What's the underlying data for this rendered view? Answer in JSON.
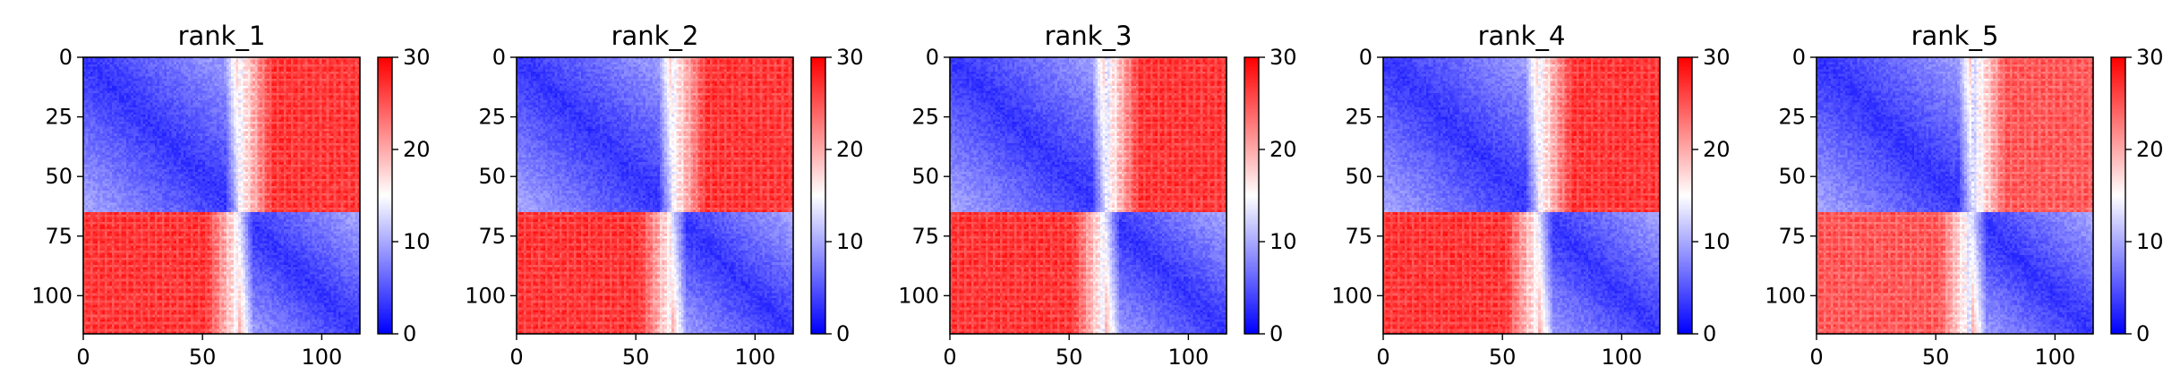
{
  "chart_data": [
    {
      "type": "heatmap",
      "title": "rank_1",
      "n": 116,
      "xlim": [
        0,
        116
      ],
      "ylim": [
        116,
        0
      ],
      "x_ticks": [
        "0",
        "50",
        "100"
      ],
      "y_ticks": [
        "0",
        "25",
        "50",
        "75",
        "100"
      ],
      "colorbar": {
        "cmap": "bwr",
        "min": 0,
        "max": 30,
        "ticks": [
          "0",
          "10",
          "20",
          "30"
        ]
      },
      "block_boundary": 65,
      "within_block_value": 3,
      "between_block_value": 27,
      "boundary_band_value": 15
    },
    {
      "type": "heatmap",
      "title": "rank_2",
      "n": 116,
      "xlim": [
        0,
        116
      ],
      "ylim": [
        116,
        0
      ],
      "x_ticks": [
        "0",
        "50",
        "100"
      ],
      "y_ticks": [
        "0",
        "25",
        "50",
        "75",
        "100"
      ],
      "colorbar": {
        "cmap": "bwr",
        "min": 0,
        "max": 30,
        "ticks": [
          "0",
          "10",
          "20",
          "30"
        ]
      },
      "block_boundary": 65,
      "within_block_value": 3,
      "between_block_value": 27,
      "boundary_band_value": 15
    },
    {
      "type": "heatmap",
      "title": "rank_3",
      "n": 116,
      "xlim": [
        0,
        116
      ],
      "ylim": [
        116,
        0
      ],
      "x_ticks": [
        "0",
        "50",
        "100"
      ],
      "y_ticks": [
        "0",
        "25",
        "50",
        "75",
        "100"
      ],
      "colorbar": {
        "cmap": "bwr",
        "min": 0,
        "max": 30,
        "ticks": [
          "0",
          "10",
          "20",
          "30"
        ]
      },
      "block_boundary": 65,
      "within_block_value": 3,
      "between_block_value": 27,
      "boundary_band_value": 14
    },
    {
      "type": "heatmap",
      "title": "rank_4",
      "n": 116,
      "xlim": [
        0,
        116
      ],
      "ylim": [
        116,
        0
      ],
      "x_ticks": [
        "0",
        "50",
        "100"
      ],
      "y_ticks": [
        "0",
        "25",
        "50",
        "75",
        "100"
      ],
      "colorbar": {
        "cmap": "bwr",
        "min": 0,
        "max": 30,
        "ticks": [
          "0",
          "10",
          "20",
          "30"
        ]
      },
      "block_boundary": 65,
      "within_block_value": 3,
      "between_block_value": 27,
      "boundary_band_value": 15
    },
    {
      "type": "heatmap",
      "title": "rank_5",
      "n": 116,
      "xlim": [
        0,
        116
      ],
      "ylim": [
        116,
        0
      ],
      "x_ticks": [
        "0",
        "50",
        "100"
      ],
      "y_ticks": [
        "0",
        "25",
        "50",
        "75",
        "100"
      ],
      "colorbar": {
        "cmap": "bwr",
        "min": 0,
        "max": 30,
        "ticks": [
          "0",
          "10",
          "20",
          "30"
        ]
      },
      "block_boundary": 65,
      "within_block_value": 3,
      "between_block_value": 25,
      "boundary_band_value": 13
    }
  ]
}
